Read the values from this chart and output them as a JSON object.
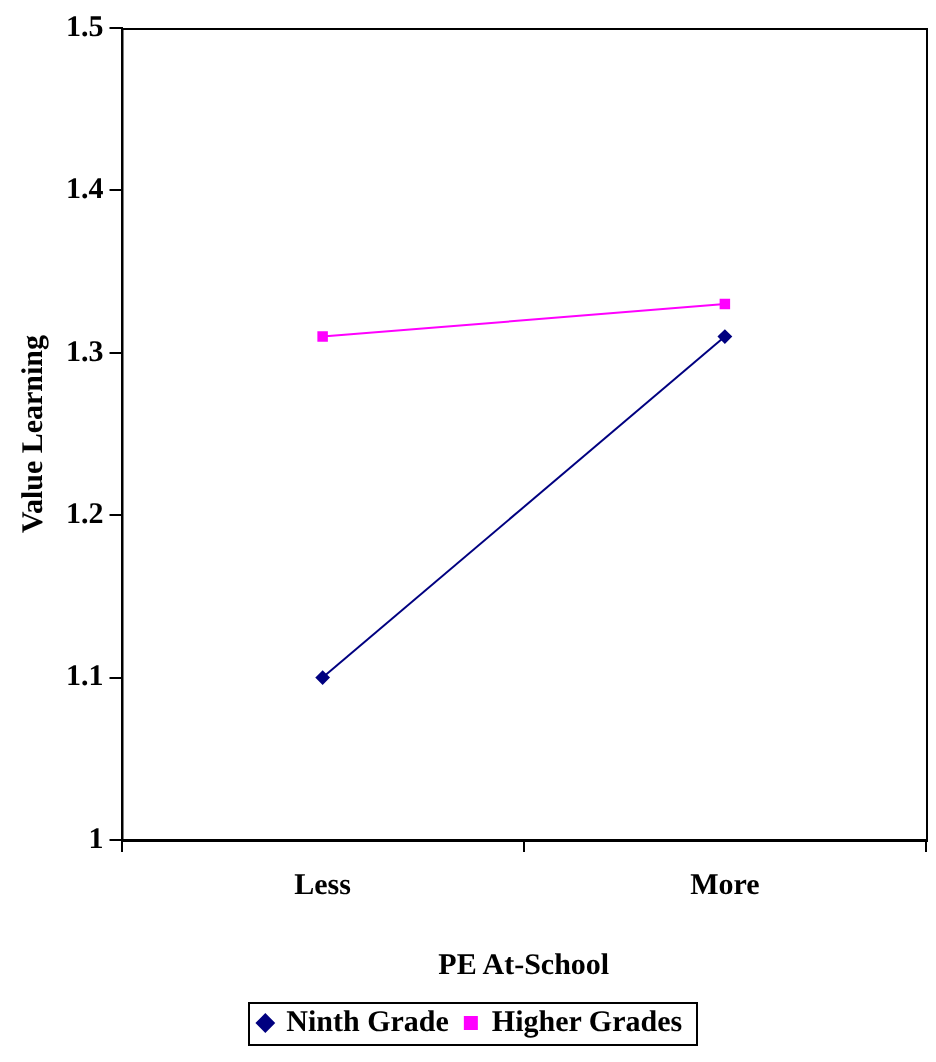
{
  "chart_data": {
    "type": "line",
    "xlabel": "PE At-School",
    "ylabel": "Value Learning",
    "categories": [
      "Less",
      "More"
    ],
    "series": [
      {
        "name": "Ninth Grade",
        "color": "#000080",
        "values": [
          1.1,
          1.31
        ],
        "marker": "diamond"
      },
      {
        "name": "Higher Grades",
        "color": "#ff00ff",
        "values": [
          1.31,
          1.33
        ],
        "marker": "square"
      }
    ],
    "ylim": [
      1,
      1.5
    ],
    "yticks": [
      1,
      1.1,
      1.2,
      1.3,
      1.4,
      1.5
    ],
    "grid": false,
    "legend": "bottom",
    "line_style": "solid"
  }
}
